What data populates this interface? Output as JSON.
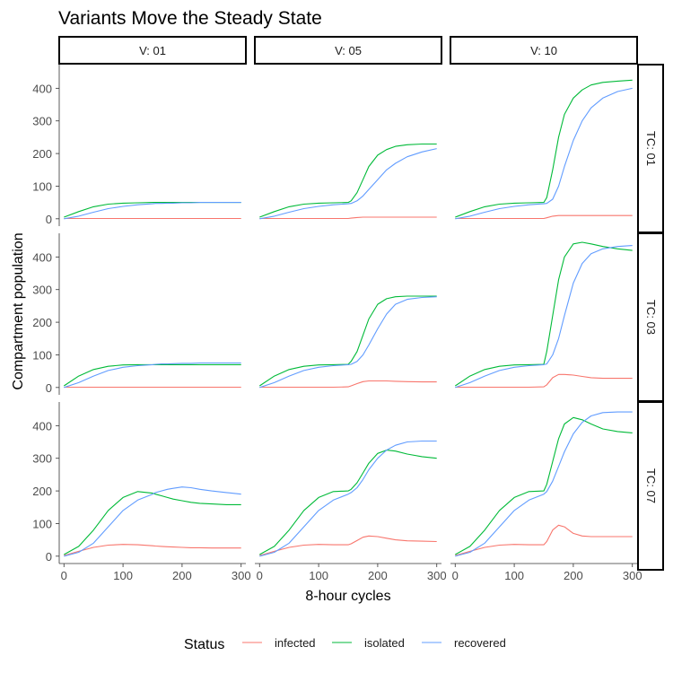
{
  "chart_data": {
    "type": "line",
    "title": "Variants Move the Steady State",
    "xlabel": "8-hour cycles",
    "ylabel": "Compartment population",
    "xlim": [
      0,
      300
    ],
    "ylim": [
      0,
      450
    ],
    "x_ticks": [
      0,
      100,
      200,
      300
    ],
    "y_ticks": [
      0,
      100,
      200,
      300,
      400
    ],
    "column_facets": [
      "V: 01",
      "V: 05",
      "V: 10"
    ],
    "row_facets": [
      "TC: 01",
      "TC: 03",
      "TC: 07"
    ],
    "legend": {
      "title": "Status",
      "position": "bottom",
      "entries": [
        "infected",
        "isolated",
        "recovered"
      ]
    },
    "colors": {
      "infected": "#F8766D",
      "isolated": "#00BA38",
      "recovered": "#619CFF"
    },
    "x": [
      0,
      25,
      50,
      75,
      100,
      125,
      150,
      155,
      165,
      175,
      185,
      200,
      215,
      230,
      250,
      275,
      300
    ],
    "panels": [
      {
        "row": 0,
        "col": 0,
        "series": [
          {
            "name": "infected",
            "values": [
              1,
              1,
              1,
              1,
              1,
              1,
              1,
              1,
              1,
              1,
              1,
              1,
              1,
              1,
              1,
              1,
              1
            ]
          },
          {
            "name": "isolated",
            "values": [
              5,
              22,
              37,
              45,
              48,
              49,
              50,
              50,
              50,
              50,
              50,
              50,
              50,
              50,
              50,
              50,
              50
            ]
          },
          {
            "name": "recovered",
            "values": [
              0,
              8,
              20,
              31,
              38,
              43,
              46,
              47,
              47,
              48,
              48,
              49,
              49,
              50,
              50,
              50,
              50
            ]
          }
        ]
      },
      {
        "row": 0,
        "col": 1,
        "series": [
          {
            "name": "infected",
            "values": [
              1,
              1,
              1,
              1,
              1,
              1,
              1,
              2,
              4,
              5,
              5,
              5,
              5,
              5,
              5,
              5,
              5
            ]
          },
          {
            "name": "isolated",
            "values": [
              5,
              22,
              37,
              45,
              48,
              49,
              50,
              55,
              80,
              120,
              160,
              195,
              212,
              222,
              227,
              229,
              229
            ]
          },
          {
            "name": "recovered",
            "values": [
              0,
              8,
              20,
              31,
              38,
              43,
              46,
              47,
              55,
              70,
              90,
              120,
              150,
              170,
              190,
              205,
              215
            ]
          }
        ]
      },
      {
        "row": 0,
        "col": 2,
        "series": [
          {
            "name": "infected",
            "values": [
              1,
              1,
              1,
              1,
              1,
              1,
              1,
              3,
              8,
              10,
              10,
              10,
              10,
              10,
              10,
              10,
              10
            ]
          },
          {
            "name": "isolated",
            "values": [
              5,
              22,
              37,
              45,
              48,
              49,
              50,
              65,
              150,
              250,
              320,
              370,
              395,
              410,
              418,
              422,
              425
            ]
          },
          {
            "name": "recovered",
            "values": [
              0,
              8,
              20,
              31,
              38,
              43,
              46,
              47,
              60,
              100,
              160,
              240,
              300,
              340,
              370,
              390,
              400
            ]
          }
        ]
      },
      {
        "row": 1,
        "col": 0,
        "series": [
          {
            "name": "infected",
            "values": [
              1,
              1,
              1,
              1,
              1,
              1,
              1,
              1,
              1,
              1,
              1,
              1,
              1,
              1,
              1,
              1,
              1
            ]
          },
          {
            "name": "isolated",
            "values": [
              5,
              35,
              55,
              65,
              69,
              70,
              70,
              70,
              70,
              70,
              70,
              70,
              70,
              70,
              70,
              70,
              70
            ]
          },
          {
            "name": "recovered",
            "values": [
              0,
              15,
              35,
              52,
              62,
              67,
              70,
              71,
              72,
              72,
              73,
              74,
              74,
              75,
              75,
              75,
              75
            ]
          }
        ]
      },
      {
        "row": 1,
        "col": 1,
        "series": [
          {
            "name": "infected",
            "values": [
              1,
              1,
              1,
              1,
              1,
              1,
              2,
              5,
              12,
              18,
              20,
              20,
              20,
              19,
              18,
              17,
              17
            ]
          },
          {
            "name": "isolated",
            "values": [
              5,
              35,
              55,
              65,
              69,
              70,
              71,
              80,
              110,
              160,
              210,
              255,
              272,
              278,
              280,
              280,
              280
            ]
          },
          {
            "name": "recovered",
            "values": [
              0,
              15,
              35,
              52,
              62,
              67,
              70,
              71,
              80,
              100,
              130,
              180,
              225,
              255,
              270,
              276,
              278
            ]
          }
        ]
      },
      {
        "row": 1,
        "col": 2,
        "series": [
          {
            "name": "infected",
            "values": [
              1,
              1,
              1,
              1,
              1,
              1,
              2,
              8,
              30,
              40,
              40,
              38,
              34,
              30,
              28,
              28,
              28
            ]
          },
          {
            "name": "isolated",
            "values": [
              5,
              35,
              55,
              65,
              69,
              70,
              71,
              110,
              220,
              330,
              400,
              440,
              445,
              440,
              432,
              425,
              420
            ]
          },
          {
            "name": "recovered",
            "values": [
              0,
              15,
              35,
              52,
              62,
              67,
              70,
              72,
              100,
              150,
              220,
              320,
              380,
              410,
              425,
              432,
              435
            ]
          }
        ]
      },
      {
        "row": 2,
        "col": 0,
        "series": [
          {
            "name": "infected",
            "values": [
              2,
              15,
              27,
              34,
              36,
              35,
              32,
              31,
              30,
              29,
              28,
              27,
              26,
              26,
              25,
              25,
              25
            ]
          },
          {
            "name": "isolated",
            "values": [
              5,
              30,
              80,
              140,
              180,
              198,
              193,
              190,
              185,
              180,
              175,
              170,
              165,
              162,
              160,
              158,
              158
            ]
          },
          {
            "name": "recovered",
            "values": [
              0,
              12,
              40,
              90,
              140,
              172,
              190,
              195,
              200,
              205,
              208,
              212,
              210,
              205,
              200,
              195,
              190
            ]
          }
        ]
      },
      {
        "row": 2,
        "col": 1,
        "series": [
          {
            "name": "infected",
            "values": [
              2,
              15,
              27,
              34,
              36,
              35,
              35,
              38,
              48,
              58,
              62,
              60,
              55,
              50,
              47,
              46,
              45
            ]
          },
          {
            "name": "isolated",
            "values": [
              5,
              30,
              80,
              140,
              180,
              198,
              200,
              205,
              225,
              255,
              285,
              315,
              325,
              322,
              313,
              305,
              300
            ]
          },
          {
            "name": "recovered",
            "values": [
              0,
              12,
              40,
              90,
              140,
              172,
              190,
              195,
              210,
              235,
              265,
              300,
              325,
              340,
              350,
              353,
              353
            ]
          }
        ]
      },
      {
        "row": 2,
        "col": 2,
        "series": [
          {
            "name": "infected",
            "values": [
              2,
              15,
              27,
              34,
              36,
              35,
              35,
              45,
              80,
              95,
              90,
              70,
              62,
              60,
              60,
              60,
              60
            ]
          },
          {
            "name": "isolated",
            "values": [
              5,
              30,
              80,
              140,
              180,
              198,
              200,
              220,
              290,
              360,
              405,
              425,
              418,
              405,
              390,
              382,
              378
            ]
          },
          {
            "name": "recovered",
            "values": [
              0,
              12,
              40,
              90,
              140,
              172,
              190,
              198,
              230,
              275,
              320,
              375,
              410,
              430,
              440,
              442,
              442
            ]
          }
        ]
      }
    ]
  }
}
